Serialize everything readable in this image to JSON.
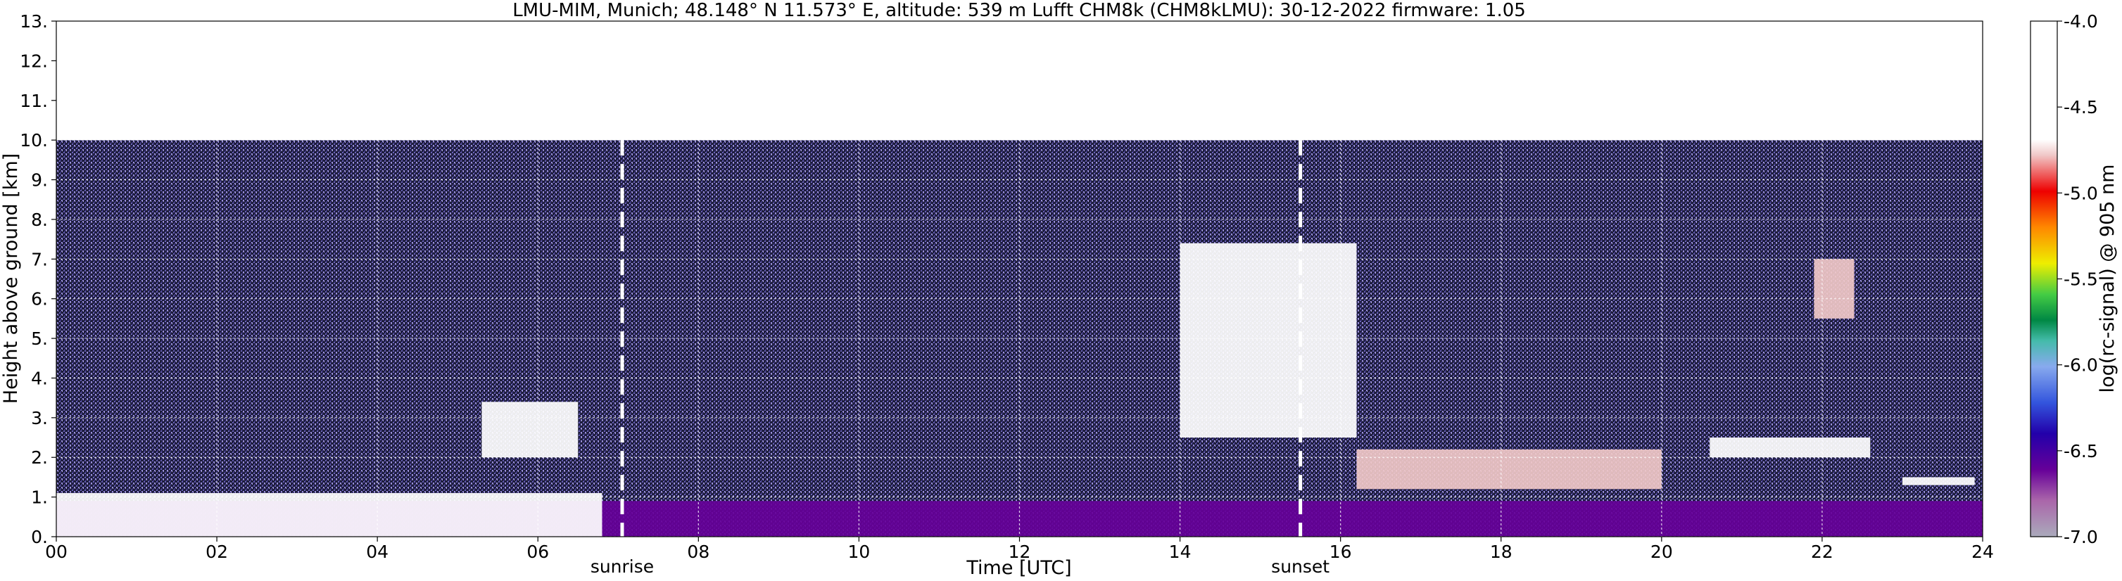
{
  "chart_data": {
    "type": "heatmap",
    "title": "LMU-MIM, Munich; 48.148° N 11.573° E, altitude: 539 m    Lufft CHM8k (CHM8kLMU): 30-12-2022    firmware: 1.05",
    "xlabel": "Time [UTC]",
    "ylabel": "Height above ground [km]",
    "colorbar_label": "log(rc-signal) @ 905 nm",
    "xlim": [
      0,
      24
    ],
    "ylim": [
      0,
      13
    ],
    "x_ticks": [
      "00",
      "02",
      "04",
      "06",
      "08",
      "10",
      "12",
      "14",
      "16",
      "18",
      "20",
      "22",
      "24"
    ],
    "y_ticks": [
      "0.",
      "1.",
      "2.",
      "3.",
      "4.",
      "5.",
      "6.",
      "7.",
      "8.",
      "9.",
      "10.",
      "11.",
      "12.",
      "13."
    ],
    "colorbar_ticks": [
      "-4.0",
      "-4.5",
      "-5.0",
      "-5.5",
      "-6.0",
      "-6.5",
      "-7.0"
    ],
    "colorbar_range": [
      -7.0,
      -4.0
    ],
    "data_top_km": 10,
    "grid": true,
    "event_lines": [
      {
        "label": "sunrise",
        "time_utc": 7.05
      },
      {
        "label": "sunset",
        "time_utc": 15.5
      }
    ],
    "features": [
      {
        "feature": "boundary-layer",
        "t_start": 0,
        "t_end": 24,
        "h_bottom": 0,
        "h_top": 0.9,
        "level": -6.6
      },
      {
        "feature": "morning-cloud",
        "t_start": 0,
        "t_end": 6.8,
        "h_bottom": 0,
        "h_top": 1.1,
        "level": -4.6
      },
      {
        "feature": "morning-cloud",
        "t_start": 5.3,
        "t_end": 6.5,
        "h_bottom": 2.0,
        "h_top": 3.4,
        "level": -4.3
      },
      {
        "feature": "descending-cloud",
        "t_start": 14.0,
        "t_end": 16.2,
        "h_bottom": 2.5,
        "h_top": 7.4,
        "level": -4.5
      },
      {
        "feature": "evening-cloud",
        "t_start": 16.2,
        "t_end": 20.0,
        "h_bottom": 1.2,
        "h_top": 2.2,
        "level": -4.8
      },
      {
        "feature": "night-cloud",
        "t_start": 20.6,
        "t_end": 22.6,
        "h_bottom": 2.0,
        "h_top": 2.5,
        "level": -4.6
      },
      {
        "feature": "high-cloud",
        "t_start": 21.9,
        "t_end": 22.4,
        "h_bottom": 5.5,
        "h_top": 7.0,
        "level": -4.8
      },
      {
        "feature": "night-cloud",
        "t_start": 23.0,
        "t_end": 23.9,
        "h_bottom": 1.3,
        "h_top": 1.5,
        "level": -4.5
      }
    ]
  }
}
